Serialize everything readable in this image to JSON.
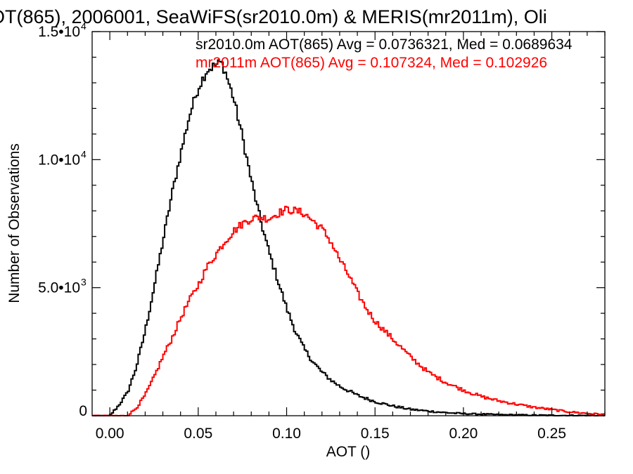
{
  "chart_data": {
    "type": "line",
    "title": "OT(865), 2006001, SeaWiFS(sr2010.0m) & MERIS(mr2011m), Oli",
    "xlabel": "AOT ()",
    "ylabel": "Number of Observations",
    "xlim": [
      -0.01,
      0.28
    ],
    "ylim": [
      0,
      15000
    ],
    "x_ticks": [
      {
        "value": 0.0,
        "label": "0.00"
      },
      {
        "value": 0.05,
        "label": "0.05"
      },
      {
        "value": 0.1,
        "label": "0.10"
      },
      {
        "value": 0.15,
        "label": "0.15"
      },
      {
        "value": 0.2,
        "label": "0.20"
      },
      {
        "value": 0.25,
        "label": "0.25"
      }
    ],
    "y_ticks": [
      {
        "value": 0,
        "mantissa": "0",
        "exponent": ""
      },
      {
        "value": 5000,
        "mantissa": "5.0•10",
        "exponent": "3"
      },
      {
        "value": 10000,
        "mantissa": "1.0•10",
        "exponent": "4"
      },
      {
        "value": 15000,
        "mantissa": "1.5•10",
        "exponent": "4"
      }
    ],
    "grid": false,
    "legend_position": "top-right",
    "series": [
      {
        "legend": "sr2010.0m AOT(865) Avg = 0.0736321, Med = 0.0689634",
        "color": "#000000",
        "x": [
          0.0,
          0.005,
          0.01,
          0.015,
          0.02,
          0.025,
          0.03,
          0.035,
          0.04,
          0.045,
          0.05,
          0.055,
          0.06,
          0.063,
          0.065,
          0.07,
          0.075,
          0.08,
          0.085,
          0.09,
          0.095,
          0.1,
          0.105,
          0.11,
          0.115,
          0.12,
          0.125,
          0.13,
          0.14,
          0.15,
          0.16,
          0.17,
          0.18,
          0.19,
          0.2,
          0.22,
          0.24,
          0.26,
          0.28
        ],
        "values": [
          0,
          400,
          900,
          1900,
          3300,
          5000,
          6800,
          8600,
          10200,
          11700,
          12800,
          13500,
          13700,
          13800,
          13500,
          12400,
          10900,
          9200,
          7700,
          6400,
          5300,
          4200,
          3300,
          2600,
          2100,
          1700,
          1400,
          1150,
          800,
          550,
          380,
          250,
          180,
          120,
          80,
          40,
          20,
          10,
          5
        ]
      },
      {
        "legend": "mr2011m AOT(865) Avg = 0.107324, Med = 0.102926",
        "color": "#ff0000",
        "x": [
          0.0,
          0.01,
          0.015,
          0.02,
          0.025,
          0.03,
          0.035,
          0.04,
          0.045,
          0.05,
          0.055,
          0.06,
          0.065,
          0.07,
          0.075,
          0.08,
          0.085,
          0.09,
          0.095,
          0.1,
          0.105,
          0.11,
          0.115,
          0.12,
          0.125,
          0.13,
          0.135,
          0.14,
          0.145,
          0.15,
          0.16,
          0.17,
          0.18,
          0.19,
          0.2,
          0.21,
          0.22,
          0.23,
          0.24,
          0.25,
          0.26,
          0.27,
          0.28
        ],
        "values": [
          0,
          0,
          300,
          800,
          1500,
          2300,
          3000,
          3800,
          4500,
          5100,
          5800,
          6300,
          6800,
          7200,
          7500,
          7700,
          7750,
          7700,
          7900,
          8050,
          8000,
          7900,
          7600,
          7300,
          6800,
          6100,
          5500,
          4800,
          4200,
          3700,
          3000,
          2300,
          1700,
          1300,
          1000,
          750,
          580,
          450,
          330,
          240,
          150,
          90,
          50
        ]
      }
    ]
  }
}
